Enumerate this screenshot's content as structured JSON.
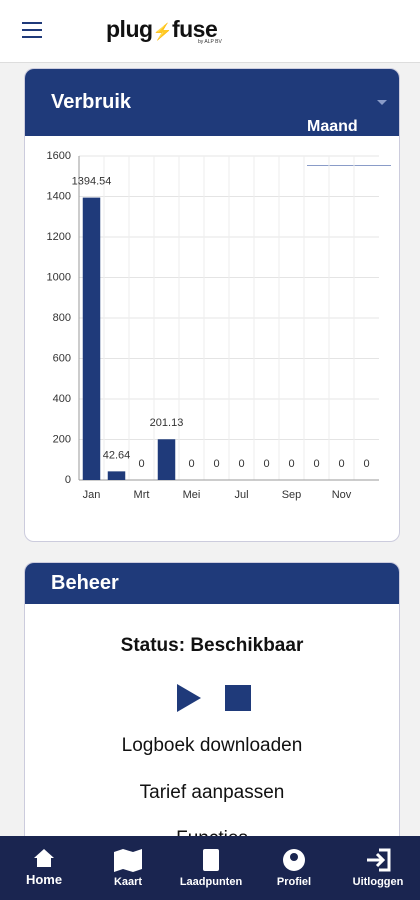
{
  "header": {
    "logo": "plug",
    "logo2": "fuse",
    "logo_sub": "by ALP BV"
  },
  "usage": {
    "title": "Verbruik",
    "period": "Maand"
  },
  "chart_data": {
    "type": "bar",
    "categories": [
      "Jan",
      null,
      "Mrt",
      null,
      "Mei",
      null,
      "Jul",
      null,
      "Sep",
      null,
      "Nov",
      null
    ],
    "values": [
      1394.54,
      42.64,
      0,
      201.13,
      0,
      0,
      0,
      0,
      0,
      0,
      0,
      0
    ],
    "color": "#1f3a7a",
    "ylim": [
      0,
      1600
    ],
    "yticks": [
      0,
      200,
      400,
      600,
      800,
      1000,
      1200,
      1400,
      1600
    ],
    "grid": true
  },
  "management": {
    "title": "Beheer",
    "status": "Status: Beschikbaar",
    "actions": [
      "Logboek downloaden",
      "Tarief aanpassen",
      "Functies"
    ]
  },
  "nav": [
    "Home",
    "Kaart",
    "Laadpunten",
    "Profiel",
    "Uitloggen"
  ]
}
